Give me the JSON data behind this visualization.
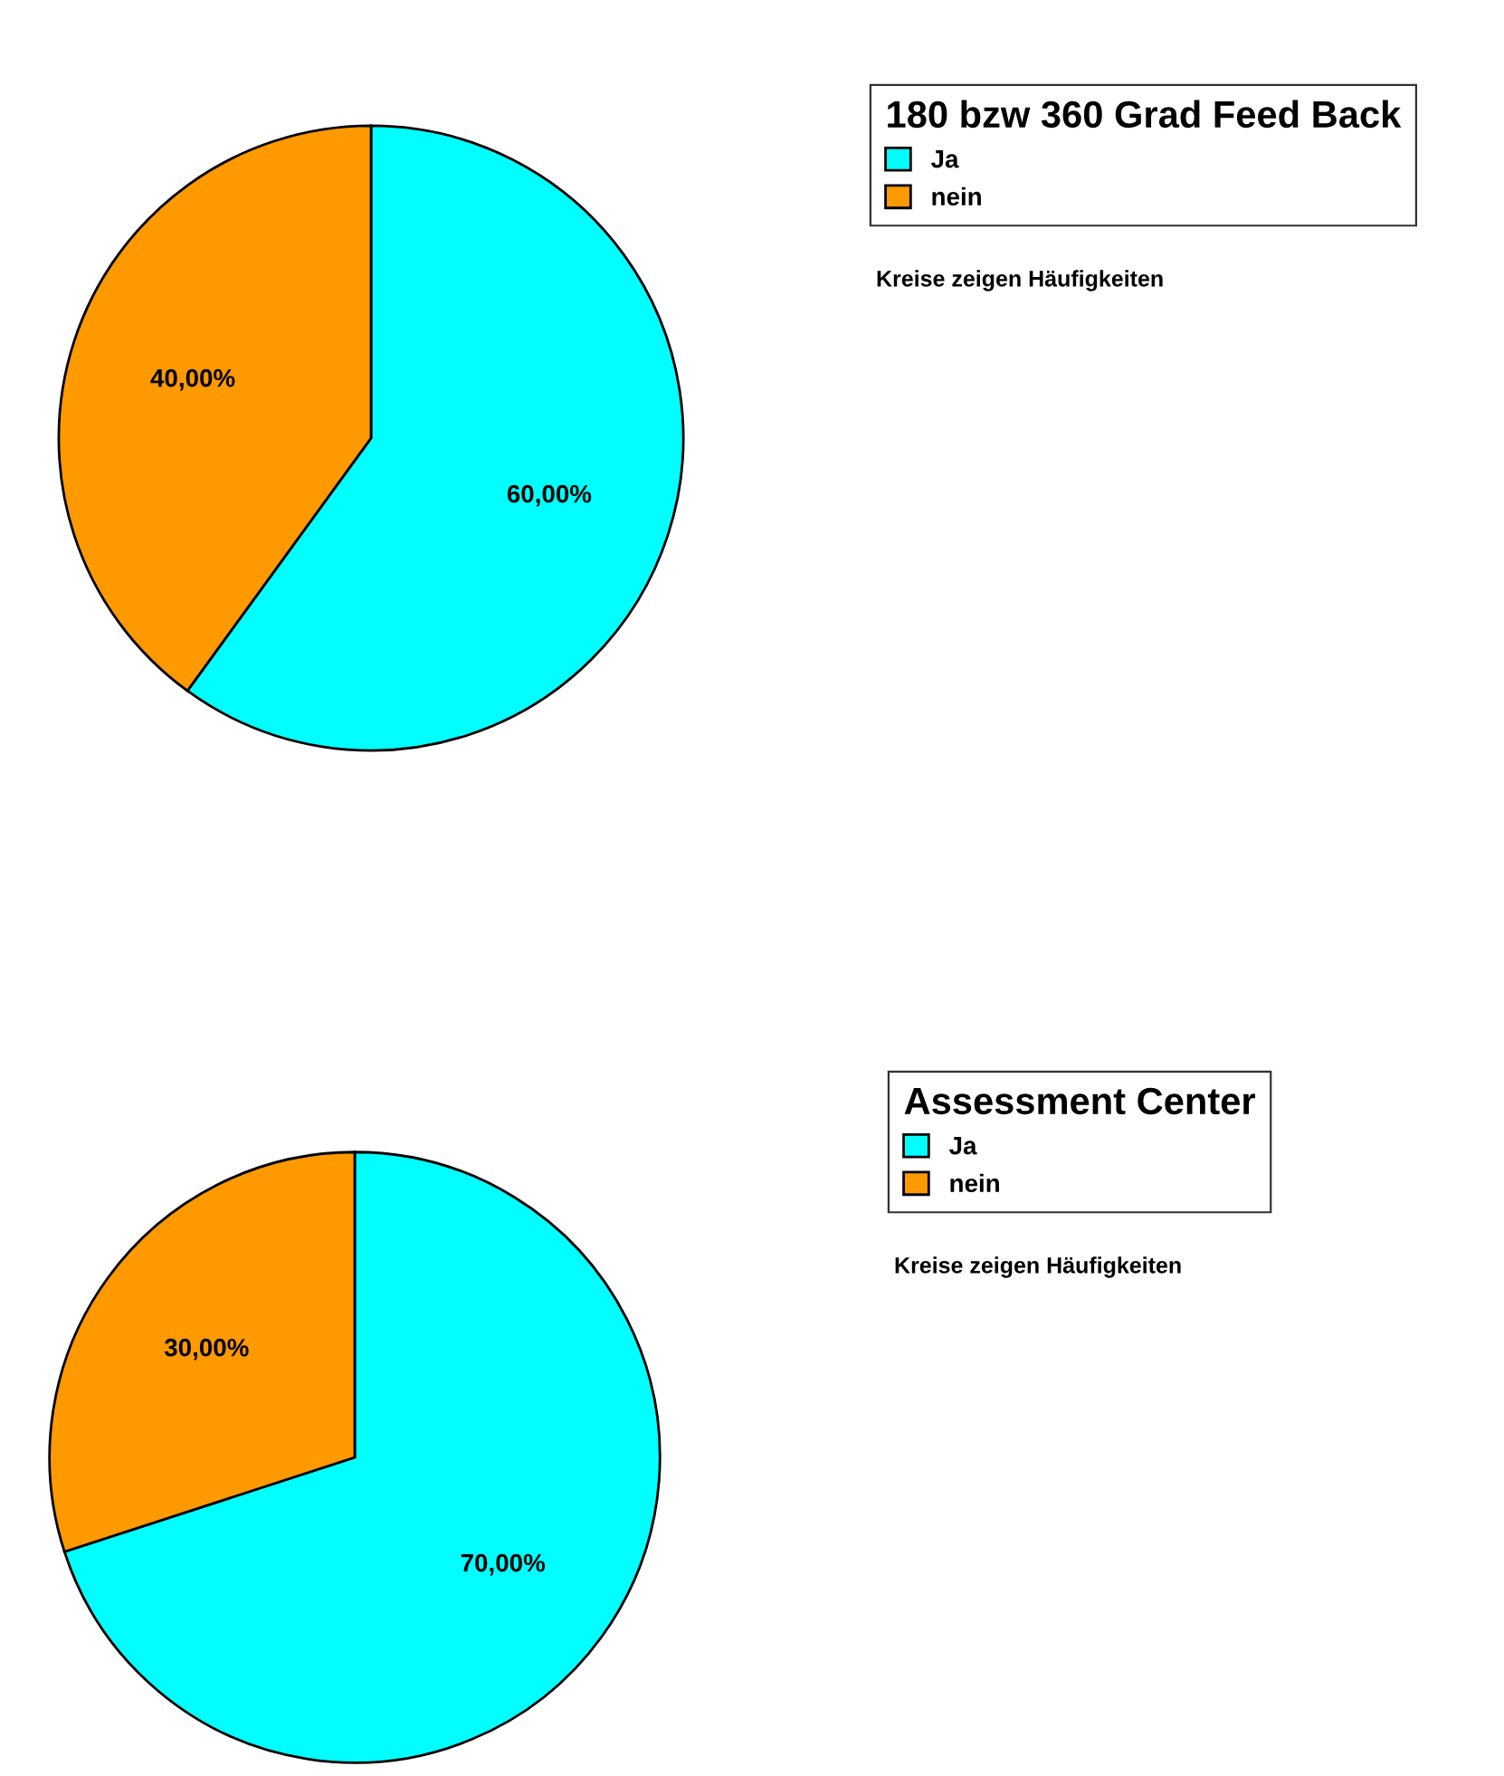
{
  "chart_data": [
    {
      "type": "pie",
      "legend_title": "180 bzw 360 Grad Feed Back",
      "categories": [
        "Ja",
        "nein"
      ],
      "values": [
        60,
        40
      ],
      "colors": [
        "#00ffff",
        "#ff9900"
      ],
      "value_labels": [
        "60,00%",
        "40,00%"
      ],
      "legend": "top right",
      "annotations": [
        "Kreise zeigen Häufigkeiten"
      ]
    },
    {
      "type": "pie",
      "legend_title": "Assessment Center",
      "categories": [
        "Ja",
        "nein"
      ],
      "values": [
        70,
        30
      ],
      "colors": [
        "#00ffff",
        "#ff9900"
      ],
      "value_labels": [
        "70,00%",
        "30,00%"
      ],
      "legend": "top right",
      "annotations": [
        "Kreise zeigen Häufigkeiten"
      ]
    }
  ]
}
